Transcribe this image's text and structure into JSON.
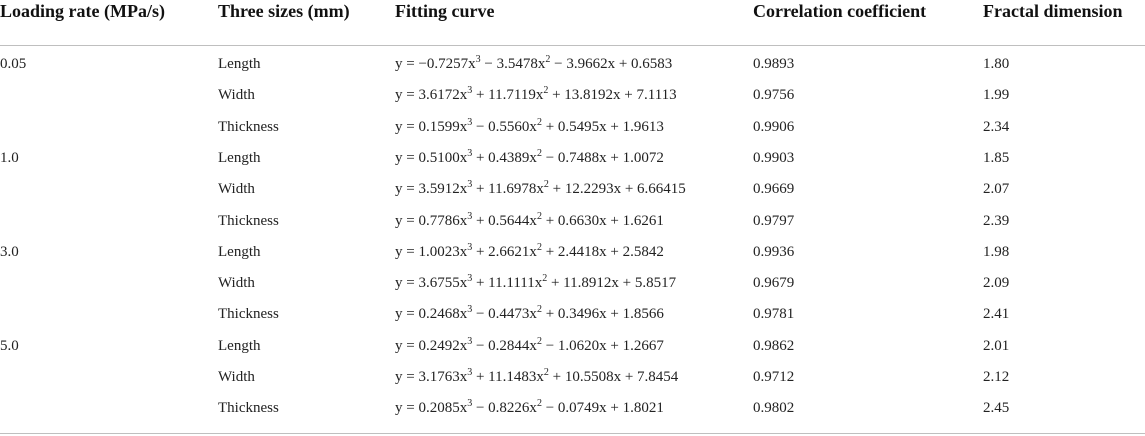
{
  "table": {
    "header": [
      "Loading rate (MPa/s)",
      "Three sizes (mm)",
      "Fitting curve",
      "Correlation coefficient",
      "Fractal dimension"
    ],
    "groups": [
      {
        "rate": "0.05",
        "rows": [
          {
            "size": "Length",
            "fit": [
              "y = −0.7257x",
              "3",
              " − 3.5478x",
              "2",
              " − 3.9662x + 0.6583"
            ],
            "r": "0.9893",
            "d": "1.80"
          },
          {
            "size": "Width",
            "fit": [
              "y = 3.6172x",
              "3",
              " + 11.7119x",
              "2",
              " + 13.8192x + 7.1113"
            ],
            "r": "0.9756",
            "d": "1.99"
          },
          {
            "size": "Thickness",
            "fit": [
              "y = 0.1599x",
              "3",
              " − 0.5560x",
              "2",
              " + 0.5495x + 1.9613"
            ],
            "r": "0.9906",
            "d": "2.34"
          }
        ]
      },
      {
        "rate": "1.0",
        "rows": [
          {
            "size": "Length",
            "fit": [
              "y = 0.5100x",
              "3",
              " + 0.4389x",
              "2",
              " − 0.7488x + 1.0072"
            ],
            "r": "0.9903",
            "d": "1.85"
          },
          {
            "size": "Width",
            "fit": [
              "y = 3.5912x",
              "3",
              " + 11.6978x",
              "2",
              " + 12.2293x + 6.66415"
            ],
            "r": "0.9669",
            "d": "2.07"
          },
          {
            "size": "Thickness",
            "fit": [
              "y = 0.7786x",
              "3",
              " + 0.5644x",
              "2",
              " + 0.6630x + 1.6261"
            ],
            "r": "0.9797",
            "d": "2.39"
          }
        ]
      },
      {
        "rate": "3.0",
        "rows": [
          {
            "size": "Length",
            "fit": [
              "y = 1.0023x",
              "3",
              " + 2.6621x",
              "2",
              " + 2.4418x + 2.5842"
            ],
            "r": "0.9936",
            "d": "1.98"
          },
          {
            "size": "Width",
            "fit": [
              "y = 3.6755x",
              "3",
              " + 11.1111x",
              "2",
              " + 11.8912x + 5.8517"
            ],
            "r": "0.9679",
            "d": "2.09"
          },
          {
            "size": "Thickness",
            "fit": [
              "y = 0.2468x",
              "3",
              " − 0.4473x",
              "2",
              " + 0.3496x + 1.8566"
            ],
            "r": "0.9781",
            "d": "2.41"
          }
        ]
      },
      {
        "rate": "5.0",
        "rows": [
          {
            "size": "Length",
            "fit": [
              "y = 0.2492x",
              "3",
              " − 0.2844x",
              "2",
              " − 1.0620x + 1.2667"
            ],
            "r": "0.9862",
            "d": "2.01"
          },
          {
            "size": "Width",
            "fit": [
              "y = 3.1763x",
              "3",
              " + 11.1483x",
              "2",
              " + 10.5508x + 7.8454"
            ],
            "r": "0.9712",
            "d": "2.12"
          },
          {
            "size": "Thickness",
            "fit": [
              "y = 0.2085x",
              "3",
              " − 0.8226x",
              "2",
              " − 0.0749x + 1.8021"
            ],
            "r": "0.9802",
            "d": "2.45"
          }
        ]
      }
    ]
  }
}
